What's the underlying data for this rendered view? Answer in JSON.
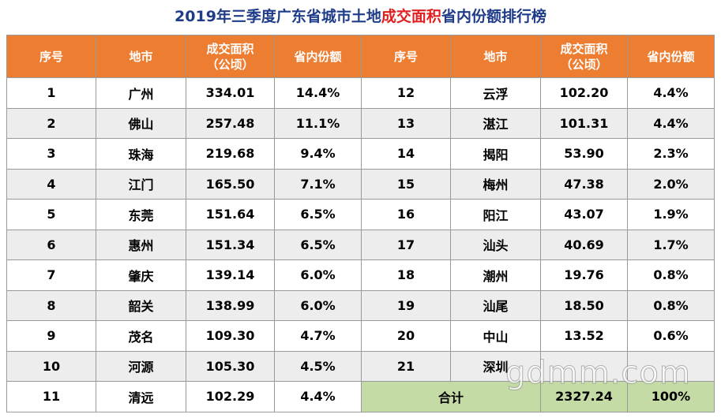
{
  "title": {
    "part1": "2019年三季度广东省城市土地",
    "highlight": "成交面积",
    "part2": "省内份额排行榜"
  },
  "headers": {
    "rank": "序号",
    "city": "地市",
    "area_line1": "成交面积",
    "area_line2": "（公顷）",
    "share": "省内份额"
  },
  "left_rows": [
    {
      "rank": "1",
      "city": "广州",
      "area": "334.01",
      "share": "14.4%"
    },
    {
      "rank": "2",
      "city": "佛山",
      "area": "257.48",
      "share": "11.1%"
    },
    {
      "rank": "3",
      "city": "珠海",
      "area": "219.68",
      "share": "9.4%"
    },
    {
      "rank": "4",
      "city": "江门",
      "area": "165.50",
      "share": "7.1%"
    },
    {
      "rank": "5",
      "city": "东莞",
      "area": "151.64",
      "share": "6.5%"
    },
    {
      "rank": "6",
      "city": "惠州",
      "area": "151.34",
      "share": "6.5%"
    },
    {
      "rank": "7",
      "city": "肇庆",
      "area": "139.14",
      "share": "6.0%"
    },
    {
      "rank": "8",
      "city": "韶关",
      "area": "138.99",
      "share": "6.0%"
    },
    {
      "rank": "9",
      "city": "茂名",
      "area": "109.30",
      "share": "4.7%"
    },
    {
      "rank": "10",
      "city": "河源",
      "area": "105.30",
      "share": "4.5%"
    },
    {
      "rank": "11",
      "city": "清远",
      "area": "102.29",
      "share": "4.4%"
    }
  ],
  "right_rows": [
    {
      "rank": "12",
      "city": "云浮",
      "area": "102.20",
      "share": "4.4%"
    },
    {
      "rank": "13",
      "city": "湛江",
      "area": "101.31",
      "share": "4.4%"
    },
    {
      "rank": "14",
      "city": "揭阳",
      "area": "53.90",
      "share": "2.3%"
    },
    {
      "rank": "15",
      "city": "梅州",
      "area": "47.38",
      "share": "2.0%"
    },
    {
      "rank": "16",
      "city": "阳江",
      "area": "43.07",
      "share": "1.9%"
    },
    {
      "rank": "17",
      "city": "汕头",
      "area": "40.69",
      "share": "1.7%"
    },
    {
      "rank": "18",
      "city": "潮州",
      "area": "19.76",
      "share": "0.8%"
    },
    {
      "rank": "19",
      "city": "汕尾",
      "area": "18.50",
      "share": "0.8%"
    },
    {
      "rank": "20",
      "city": "中山",
      "area": "13.52",
      "share": "0.6%"
    },
    {
      "rank": "21",
      "city": "深圳",
      "area": "",
      "share": ""
    }
  ],
  "total": {
    "label": "合计",
    "area": "2327.24",
    "share": "100%"
  },
  "watermark": "gdmm.com",
  "colors": {
    "header_bg": "#ed7d31",
    "header_text": "#ffffff",
    "title_text": "#1f3c88",
    "title_highlight": "#e02020",
    "row_shade": "#ededed",
    "total_bg": "#c5dba5"
  }
}
